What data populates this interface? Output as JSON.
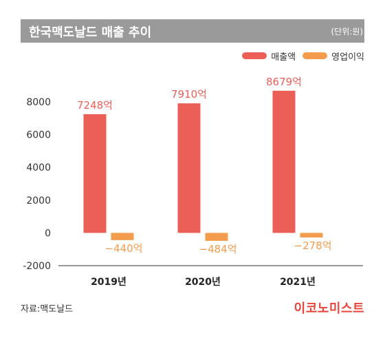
{
  "header": {
    "title": "한국맥도날드 매출 추이",
    "unit": "(단위:원)"
  },
  "legend": [
    {
      "label": "매출액",
      "color": "#ec5f57"
    },
    {
      "label": "영업이익",
      "color": "#f39c4d"
    }
  ],
  "chart_data": {
    "type": "bar",
    "categories": [
      "2019년",
      "2020년",
      "2021년"
    ],
    "series": [
      {
        "name": "매출액",
        "values": [
          7248,
          7910,
          8679
        ],
        "labels": [
          "7248억",
          "7910억",
          "8679억"
        ],
        "color": "#ec5f57"
      },
      {
        "name": "영업이익",
        "values": [
          -440,
          -484,
          -278
        ],
        "labels": [
          "−440억",
          "−484억",
          "−278억"
        ],
        "color": "#f39c4d"
      }
    ],
    "yticks": [
      8000,
      6000,
      4000,
      2000,
      0,
      -2000
    ],
    "ytick_labels": [
      "8000",
      "6000",
      "4000",
      "2000",
      "0",
      "-2000"
    ],
    "ylim": [
      -2000,
      8000
    ],
    "grid": false,
    "legend_position": "top-right"
  },
  "footer": {
    "source": "자료:맥도날드",
    "brand": "이코노미스트"
  }
}
